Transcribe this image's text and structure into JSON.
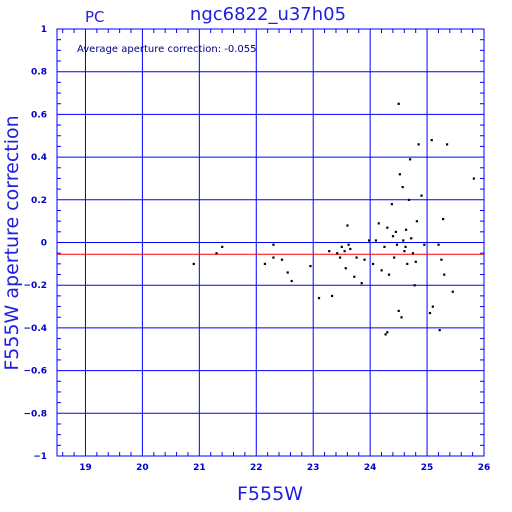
{
  "chart_data": {
    "type": "scatter",
    "title": "ngc6822_u37h05",
    "corner_label": "PC",
    "xlabel": "F555W",
    "ylabel": "F555W aperture correction",
    "annotation": "Average aperture correction: -0.055",
    "xlim": [
      18.5,
      26.0
    ],
    "ylim": [
      -1.0,
      1.0
    ],
    "x_ticks": [
      "19",
      "20",
      "21",
      "22",
      "23",
      "24",
      "25",
      "26"
    ],
    "x_tick_values": [
      19,
      20,
      21,
      22,
      23,
      24,
      25,
      26
    ],
    "y_ticks": [
      "1",
      "0.8",
      "0.6",
      "0.4",
      "0.2",
      "0",
      "−0.2",
      "−0.4",
      "−0.6",
      "−0.8",
      "−1"
    ],
    "y_tick_values": [
      1,
      0.8,
      0.6,
      0.4,
      0.2,
      0,
      -0.2,
      -0.4,
      -0.6,
      -0.8,
      -1
    ],
    "grid": true,
    "reference_lines": [
      {
        "y": -0.055,
        "color": "#ff0000"
      },
      {
        "y": 0,
        "color": "#0000ff"
      }
    ],
    "colors": {
      "axes": "#0000ff",
      "text": "#2020e0",
      "points": "#000000",
      "average_line": "#ff0000"
    },
    "points": [
      [
        20.9,
        -0.1
      ],
      [
        21.3,
        -0.05
      ],
      [
        21.4,
        -0.02
      ],
      [
        22.15,
        -0.1
      ],
      [
        22.3,
        -0.07
      ],
      [
        22.3,
        -0.01
      ],
      [
        22.45,
        -0.08
      ],
      [
        22.55,
        -0.14
      ],
      [
        22.62,
        -0.18
      ],
      [
        22.95,
        -0.11
      ],
      [
        23.1,
        -0.26
      ],
      [
        23.28,
        -0.04
      ],
      [
        23.33,
        -0.25
      ],
      [
        23.42,
        -0.05
      ],
      [
        23.47,
        -0.07
      ],
      [
        23.5,
        -0.02
      ],
      [
        23.55,
        -0.04
      ],
      [
        23.57,
        -0.12
      ],
      [
        23.6,
        0.08
      ],
      [
        23.62,
        -0.01
      ],
      [
        23.65,
        -0.03
      ],
      [
        23.72,
        -0.16
      ],
      [
        23.76,
        -0.07
      ],
      [
        23.85,
        -0.19
      ],
      [
        23.9,
        -0.08
      ],
      [
        23.98,
        0.01
      ],
      [
        24.05,
        -0.1
      ],
      [
        24.1,
        0.01
      ],
      [
        24.15,
        0.09
      ],
      [
        24.2,
        -0.13
      ],
      [
        24.25,
        -0.02
      ],
      [
        24.27,
        -0.43
      ],
      [
        24.3,
        0.07
      ],
      [
        24.3,
        -0.42
      ],
      [
        24.33,
        -0.15
      ],
      [
        24.38,
        0.18
      ],
      [
        24.4,
        0.03
      ],
      [
        24.42,
        -0.07
      ],
      [
        24.45,
        0.05
      ],
      [
        24.47,
        -0.01
      ],
      [
        24.5,
        0.65
      ],
      [
        24.5,
        -0.32
      ],
      [
        24.52,
        0.32
      ],
      [
        24.55,
        -0.35
      ],
      [
        24.57,
        0.26
      ],
      [
        24.58,
        0.01
      ],
      [
        24.6,
        -0.04
      ],
      [
        24.62,
        -0.02
      ],
      [
        24.63,
        0.06
      ],
      [
        24.65,
        -0.1
      ],
      [
        24.68,
        0.2
      ],
      [
        24.7,
        0.39
      ],
      [
        24.72,
        0.02
      ],
      [
        24.75,
        -0.05
      ],
      [
        24.78,
        -0.2
      ],
      [
        24.8,
        -0.09
      ],
      [
        24.82,
        0.1
      ],
      [
        24.85,
        0.46
      ],
      [
        24.9,
        0.22
      ],
      [
        24.95,
        -0.01
      ],
      [
        25.05,
        -0.33
      ],
      [
        25.08,
        0.48
      ],
      [
        25.1,
        -0.3
      ],
      [
        25.2,
        -0.01
      ],
      [
        25.22,
        -0.41
      ],
      [
        25.25,
        -0.08
      ],
      [
        25.28,
        0.11
      ],
      [
        25.3,
        -0.15
      ],
      [
        25.35,
        0.46
      ],
      [
        25.45,
        -0.23
      ],
      [
        25.82,
        0.3
      ]
    ]
  }
}
